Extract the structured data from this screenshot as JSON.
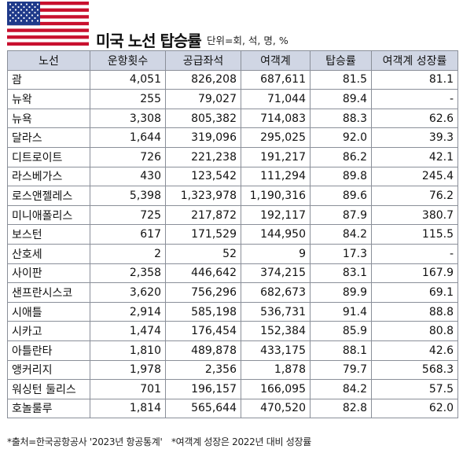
{
  "header": {
    "title": "미국 노선 탑승률",
    "unit": "단위=회, 석, 명, %"
  },
  "colors": {
    "header_bg": "#d0d6e4",
    "border": "#8a8f99",
    "flag_red": "#c8102e",
    "flag_blue": "#1f3a8a"
  },
  "table": {
    "columns": [
      "노선",
      "운항횟수",
      "공급좌석",
      "여객계",
      "탑승률",
      "여객계 성장률"
    ],
    "rows": [
      [
        "괌",
        "4,051",
        "826,208",
        "687,611",
        "81.5",
        "81.1"
      ],
      [
        "뉴왁",
        "255",
        "79,027",
        "71,044",
        "89.4",
        "-"
      ],
      [
        "뉴욕",
        "3,308",
        "805,382",
        "714,083",
        "88.3",
        "62.6"
      ],
      [
        "달라스",
        "1,644",
        "319,096",
        "295,025",
        "92.0",
        "39.3"
      ],
      [
        "디트로이트",
        "726",
        "221,238",
        "191,217",
        "86.2",
        "42.1"
      ],
      [
        "라스베가스",
        "430",
        "123,542",
        "111,294",
        "89.8",
        "245.4"
      ],
      [
        "로스앤젤레스",
        "5,398",
        "1,323,978",
        "1,190,316",
        "89.6",
        "76.2"
      ],
      [
        "미니애폴리스",
        "725",
        "217,872",
        "192,117",
        "87.9",
        "380.7"
      ],
      [
        "보스턴",
        "617",
        "171,529",
        "144,950",
        "84.2",
        "115.5"
      ],
      [
        "산호세",
        "2",
        "52",
        "9",
        "17.3",
        "-"
      ],
      [
        "사이판",
        "2,358",
        "446,642",
        "374,215",
        "83.1",
        "167.9"
      ],
      [
        "샌프란시스코",
        "3,620",
        "756,296",
        "682,673",
        "89.9",
        "69.1"
      ],
      [
        "시애틀",
        "2,914",
        "585,198",
        "536,731",
        "91.4",
        "88.8"
      ],
      [
        "시카고",
        "1,474",
        "176,454",
        "152,384",
        "85.9",
        "80.8"
      ],
      [
        "아틀란타",
        "1,810",
        "489,878",
        "433,175",
        "88.1",
        "42.6"
      ],
      [
        "앵커리지",
        "1,978",
        "2,356",
        "1,878",
        "79.7",
        "568.3"
      ],
      [
        "워싱턴 둘리스",
        "701",
        "196,157",
        "166,095",
        "84.2",
        "57.5"
      ],
      [
        "호놀룰루",
        "1,814",
        "565,644",
        "470,520",
        "82.8",
        "62.0"
      ]
    ]
  },
  "footnote": {
    "source": "*출처=한국공항공사 '2023년 항공통계'",
    "note": "*여객계 성장은 2022년 대비 성장률"
  }
}
